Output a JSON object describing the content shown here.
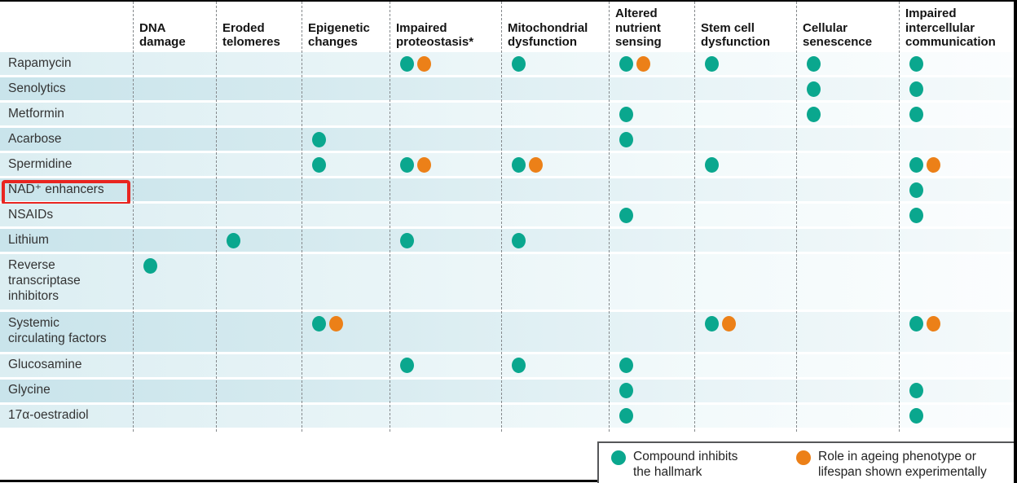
{
  "chart_data": {
    "type": "table",
    "title": "",
    "description": "Dot matrix of compounds versus the hallmarks of ageing they act on",
    "columns": [
      "DNA\ndamage",
      "Eroded\ntelomeres",
      "Epigenetic\nchanges",
      "Impaired\nproteostasis*",
      "Mitochondrial\ndysfunction",
      "Altered\nnutrient\nsensing",
      "Stem cell\ndysfunction",
      "Cellular\nsenescence",
      "Impaired\nintercellular\ncommunication"
    ],
    "mark_codes": {
      "T": "teal dot: compound inhibits the hallmark",
      "TO": "teal dot + orange dot: inhibits hallmark and role in ageing phenotype or lifespan shown experimentally",
      "": "no dot"
    },
    "rows": [
      {
        "compound": "Rapamycin",
        "marks": [
          "",
          "",
          "",
          "TO",
          "T",
          "TO",
          "T",
          "T",
          "T"
        ]
      },
      {
        "compound": "Senolytics",
        "marks": [
          "",
          "",
          "",
          "",
          "",
          "",
          "",
          "T",
          "T"
        ]
      },
      {
        "compound": "Metformin",
        "marks": [
          "",
          "",
          "",
          "",
          "",
          "T",
          "",
          "T",
          "T"
        ]
      },
      {
        "compound": "Acarbose",
        "marks": [
          "",
          "",
          "T",
          "",
          "",
          "T",
          "",
          "",
          ""
        ]
      },
      {
        "compound": "Spermidine",
        "marks": [
          "",
          "",
          "T",
          "TO",
          "TO",
          "",
          "T",
          "",
          "TO"
        ]
      },
      {
        "compound": "NAD⁺ enhancers",
        "marks": [
          "",
          "",
          "",
          "",
          "",
          "",
          "",
          "",
          "T"
        ]
      },
      {
        "compound": "NSAIDs",
        "marks": [
          "",
          "",
          "",
          "",
          "",
          "T",
          "",
          "",
          "T"
        ]
      },
      {
        "compound": "Lithium",
        "marks": [
          "",
          "T",
          "",
          "T",
          "T",
          "",
          "",
          "",
          ""
        ]
      },
      {
        "compound": "Reverse\ntranscriptase\ninhibitors",
        "marks": [
          "T",
          "",
          "",
          "",
          "",
          "",
          "",
          "",
          ""
        ]
      },
      {
        "compound": "Systemic\ncirculating factors",
        "marks": [
          "",
          "",
          "TO",
          "",
          "",
          "",
          "TO",
          "",
          "TO"
        ]
      },
      {
        "compound": "Glucosamine",
        "marks": [
          "",
          "",
          "",
          "T",
          "T",
          "T",
          "",
          "",
          ""
        ]
      },
      {
        "compound": "Glycine",
        "marks": [
          "",
          "",
          "",
          "",
          "",
          "T",
          "",
          "",
          "T"
        ]
      },
      {
        "compound": "17α-oestradiol",
        "marks": [
          "",
          "",
          "",
          "",
          "",
          "T",
          "",
          "",
          "T"
        ]
      }
    ],
    "legend": [
      {
        "color": "#0aa78e",
        "label": "Compound inhibits\nthe hallmark"
      },
      {
        "color": "#ec8018",
        "label": "Role in ageing phenotype or\nlifespan shown experimentally"
      }
    ],
    "layout": {
      "grid": "dashed vertical column dividers",
      "legend_position": "bottom-right box"
    }
  },
  "annotation": {
    "type": "red-box",
    "row": "NAD⁺ enhancers"
  },
  "colors": {
    "teal": "#0aa78e",
    "orange": "#ec8018",
    "annotation_red": "#e92520",
    "row_light": "#e6f3f6",
    "row_dark": "#d5eaef"
  }
}
